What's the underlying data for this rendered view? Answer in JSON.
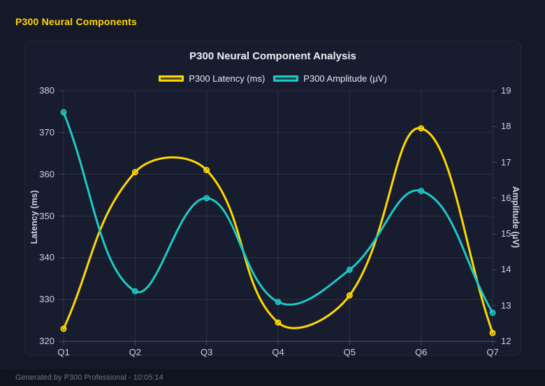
{
  "header": {
    "title": "P300 Neural Components"
  },
  "footer": {
    "text": "Generated by P300 Professional - 10:05:14"
  },
  "colors": {
    "page_bg": "#141827",
    "panel_bg": "#171c2f",
    "footer_bg": "#10141f",
    "accent_gold": "#ffd700",
    "accent_teal": "#1ec9c4",
    "grid": "rgba(175,185,215,0.13)",
    "axis_border": "rgba(175,185,215,0.28)",
    "title_text": "#edeff5",
    "tick_text": "#ccd2e0",
    "footer_text": "#6e7487"
  },
  "chart_data": {
    "type": "line",
    "title": "P300 Neural Component Analysis",
    "categories": [
      "Q1",
      "Q2",
      "Q3",
      "Q4",
      "Q5",
      "Q6",
      "Q7"
    ],
    "series": [
      {
        "name": "P300 Latency (ms)",
        "axis": "left",
        "color": "#ffd700",
        "values": [
          323,
          360.5,
          361,
          324.5,
          331,
          371,
          322
        ]
      },
      {
        "name": "P300 Amplitude (µV)",
        "axis": "right",
        "color": "#1ec9c4",
        "values": [
          18.4,
          13.4,
          16,
          13.1,
          14,
          16.2,
          12.8
        ]
      }
    ],
    "left_axis": {
      "label": "Latency (ms)",
      "min": 320,
      "max": 380,
      "ticks": [
        320,
        330,
        340,
        350,
        360,
        370,
        380
      ]
    },
    "right_axis": {
      "label": "Amplitude (µV)",
      "min": 12,
      "max": 19,
      "ticks": [
        12,
        13,
        14,
        15,
        16,
        17,
        18,
        19
      ]
    },
    "grid": true,
    "legend_position": "top",
    "line_tension": 0.4,
    "line_width": 3,
    "point_radius": 3.5
  }
}
